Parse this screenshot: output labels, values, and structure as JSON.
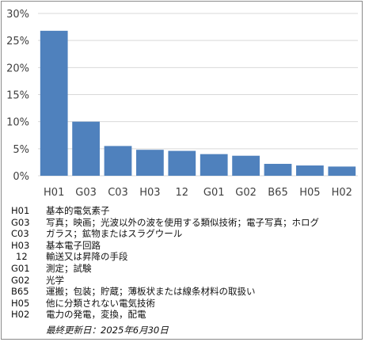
{
  "chart_data": {
    "type": "bar",
    "categories": [
      "H01",
      "G03",
      "C03",
      "H03",
      "12",
      "G01",
      "G02",
      "B65",
      "H05",
      "H02"
    ],
    "values": [
      26.8,
      10.0,
      5.5,
      4.8,
      4.6,
      4.0,
      3.7,
      2.2,
      1.9,
      1.7
    ],
    "ylim": [
      0,
      30
    ],
    "yticks": [
      "0%",
      "5%",
      "10%",
      "15%",
      "20%",
      "25%",
      "30%"
    ],
    "grid": true,
    "bar_color": "#4f81bd",
    "grid_color": "#d9d9d9"
  },
  "legend": [
    {
      "code": "H01",
      "desc": "基本的電気素子"
    },
    {
      "code": "G03",
      "desc": "写真；映画；光波以外の波を使用する類似技術；電子写真；ホログ"
    },
    {
      "code": "C03",
      "desc": "ガラス；鉱物またはスラグウール"
    },
    {
      "code": "H03",
      "desc": "基本電子回路"
    },
    {
      "code": "12",
      "desc": "輸送又は昇降の手段"
    },
    {
      "code": "G01",
      "desc": "測定；試験"
    },
    {
      "code": "G02",
      "desc": "光学"
    },
    {
      "code": "B65",
      "desc": "運搬；包装；貯蔵；薄板状または線条材料の取扱い"
    },
    {
      "code": "H05",
      "desc": "他に分類されない電気技術"
    },
    {
      "code": "H02",
      "desc": "電力の発電，変換，配電"
    }
  ],
  "updated": "最終更新日：2025年6月30日"
}
